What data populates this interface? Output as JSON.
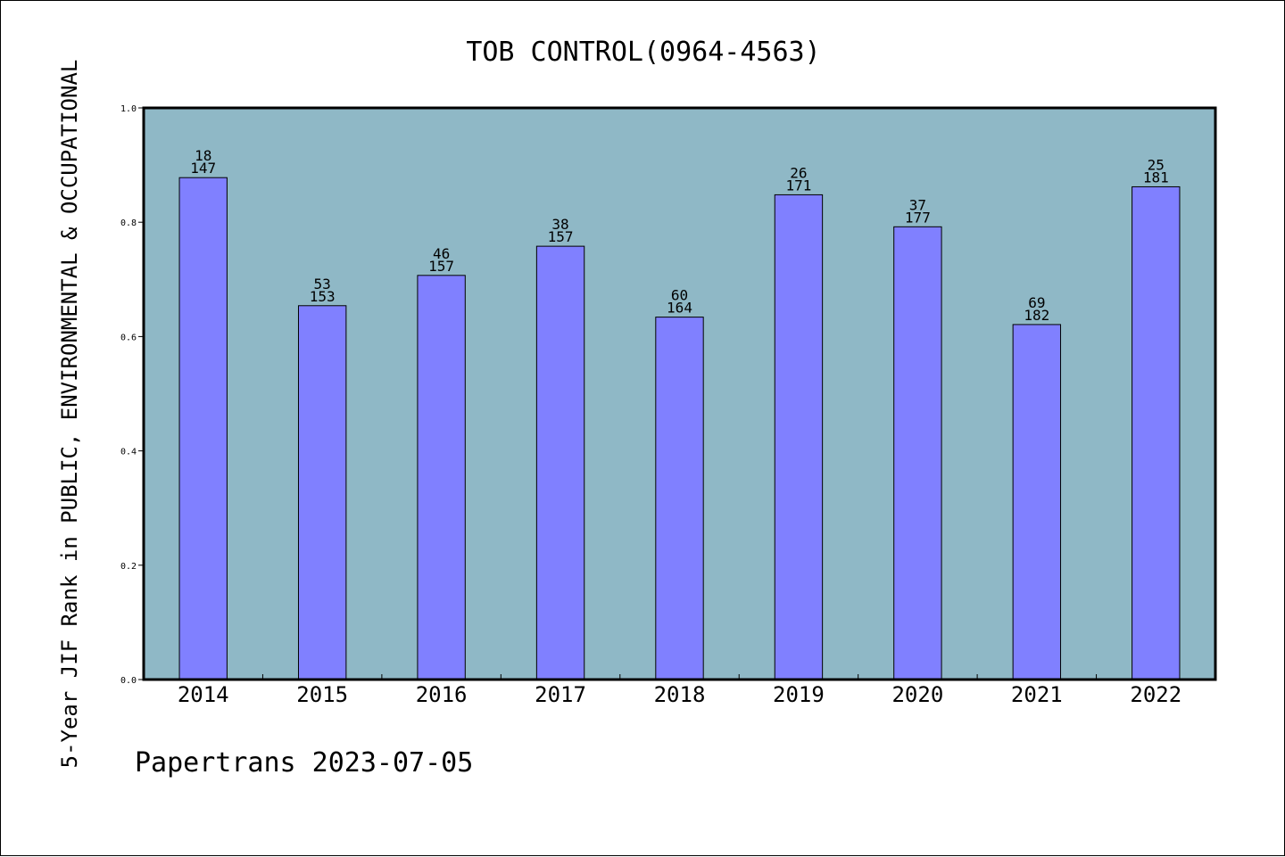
{
  "chart_data": {
    "type": "bar",
    "title": "TOB CONTROL(0964-4563)",
    "ylabel": "5-Year JIF Rank in PUBLIC, ENVIRONMENTAL & OCCUPATIONAL",
    "xlabel": "",
    "footer": "Papertrans 2023-07-05",
    "categories": [
      "2014",
      "2015",
      "2016",
      "2017",
      "2018",
      "2019",
      "2020",
      "2021",
      "2022"
    ],
    "values": [
      0.878,
      0.654,
      0.707,
      0.758,
      0.634,
      0.848,
      0.792,
      0.621,
      0.862
    ],
    "ranks": [
      "18",
      "53",
      "46",
      "38",
      "60",
      "26",
      "37",
      "69",
      "25"
    ],
    "totals": [
      "147",
      "153",
      "157",
      "157",
      "164",
      "171",
      "177",
      "182",
      "181"
    ],
    "ylim": [
      0,
      1.0
    ],
    "yticks": [
      "0.0",
      "0.2",
      "0.4",
      "0.6",
      "0.8",
      "1.0"
    ],
    "grid": false,
    "legend": "none",
    "colors": {
      "plot_background": "#8fb8c6",
      "bar_fill": "#8080ff",
      "bar_stroke": "#000000",
      "frame": "#000000"
    }
  }
}
